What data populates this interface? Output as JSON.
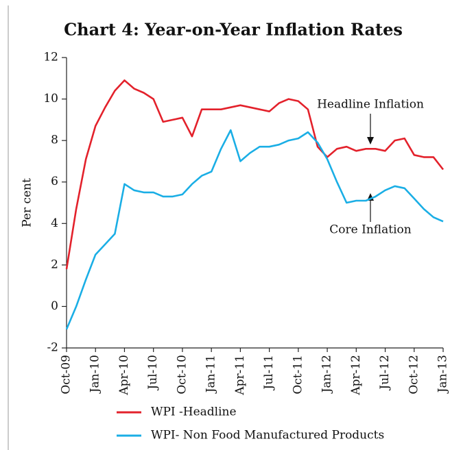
{
  "chart_data": {
    "type": "line",
    "title": "Chart 4: Year-on-Year Inflation Rates",
    "y_label": "Per cent",
    "categories": [
      "Oct-09",
      null,
      null,
      "Jan-10",
      null,
      null,
      "Apr-10",
      null,
      null,
      "Jul-10",
      null,
      null,
      "Oct-10",
      null,
      null,
      "Jan-11",
      null,
      null,
      "Apr-11",
      null,
      null,
      "Jul-11",
      null,
      null,
      "Oct-11",
      null,
      null,
      "Jan-12",
      null,
      null,
      "Apr-12",
      null,
      null,
      "Jul-12",
      null,
      null,
      "Oct-12",
      null,
      null,
      "Jan-13"
    ],
    "series": [
      {
        "name": "WPI -Headline",
        "color": "#e3212b",
        "values": [
          1.8,
          4.7,
          7.1,
          8.7,
          9.6,
          10.4,
          10.9,
          10.5,
          10.3,
          10.0,
          8.9,
          9.0,
          9.1,
          8.2,
          9.5,
          9.5,
          9.5,
          9.6,
          9.7,
          9.6,
          9.5,
          9.4,
          9.8,
          10.0,
          9.9,
          9.5,
          7.7,
          7.2,
          7.6,
          7.7,
          7.5,
          7.6,
          7.6,
          7.5,
          8.0,
          8.1,
          7.3,
          7.2,
          7.2,
          6.6
        ]
      },
      {
        "name": "WPI- Non Food Manufactured Products",
        "color": "#1aaee5",
        "values": [
          -1.1,
          0.0,
          1.3,
          2.5,
          3.0,
          3.5,
          5.9,
          5.6,
          5.5,
          5.5,
          5.3,
          5.3,
          5.4,
          5.9,
          6.3,
          6.5,
          7.6,
          8.5,
          7.0,
          7.4,
          7.7,
          7.7,
          7.8,
          8.0,
          8.1,
          8.4,
          7.9,
          7.1,
          6.0,
          5.0,
          5.1,
          5.1,
          5.3,
          5.6,
          5.8,
          5.7,
          5.2,
          4.7,
          4.3,
          4.1
        ]
      }
    ],
    "annotations": [
      "Headline Inflation",
      "Core Inflation"
    ],
    "ylim": [
      -2,
      12
    ],
    "yticks": [
      -2,
      0,
      2,
      4,
      6,
      8,
      10,
      12
    ],
    "grid": false
  }
}
